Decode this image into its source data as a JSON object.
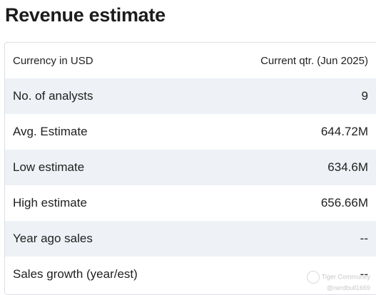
{
  "title": "Revenue estimate",
  "table": {
    "header": {
      "label": "Currency in USD",
      "value": "Current qtr. (Jun 2025)"
    },
    "rows": [
      {
        "label": "No. of analysts",
        "value": "9"
      },
      {
        "label": "Avg. Estimate",
        "value": "644.72M"
      },
      {
        "label": "Low estimate",
        "value": "634.6M"
      },
      {
        "label": "High estimate",
        "value": "656.66M"
      },
      {
        "label": "Year ago sales",
        "value": "--"
      },
      {
        "label": "Sales growth (year/est)",
        "value": "--"
      }
    ]
  },
  "watermark": {
    "brand": "Tiger Community",
    "user": "@nerdbull1669"
  },
  "colors": {
    "row_shade": "#eef2f6",
    "border": "#dcdfe3"
  }
}
